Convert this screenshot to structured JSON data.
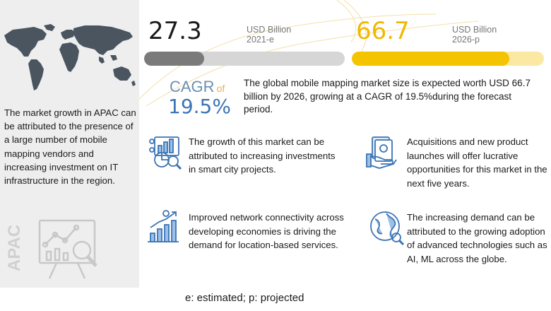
{
  "apac": {
    "description": "The market growth in APAC can be attributed to the presence of a large number of mobile mapping vendors and increasing investment on IT infrastructure  in the region.",
    "vertical_label": "APAC"
  },
  "stats": [
    {
      "value": "27.3",
      "unit_line1": "USD Billion",
      "unit_line2": "2021-e",
      "bar_fill_fraction": 0.3,
      "bar_color": "#7a7a7a",
      "bar_track_color": "#d6d6d6"
    },
    {
      "value": "66.7",
      "unit_line1": "USD Billion",
      "unit_line2": "2026-p",
      "bar_fill_fraction": 0.82,
      "bar_color": "#f5c400",
      "bar_track_color": "#fbe9a3",
      "value_color": "#f2b800"
    }
  ],
  "cagr": {
    "label": "CAGR",
    "of": "of",
    "value": "19.5%"
  },
  "summary": "The global mobile mapping market size is expected worth USD 66.7 billion by 2026, growing at a CAGR of 19.5%during the forecast period.",
  "cards": [
    {
      "icon": "analytics-chart-icon",
      "text": "The growth of this market can be attributed to increasing investments in smart city projects."
    },
    {
      "icon": "money-hand-icon",
      "text": "Acquisitions and new product launches will offer lucrative opportunities for this market in the next five years."
    },
    {
      "icon": "growth-bar-chart-icon",
      "text": "Improved network connectivity across developing economies is driving the demand for location-based services."
    },
    {
      "icon": "globe-icon",
      "text": "The increasing demand can be attributed to the growing adoption of advanced technologies such as AI, ML across the globe."
    }
  ],
  "footnote": "e: estimated; p: projected",
  "colors": {
    "accent_blue": "#3b74b5",
    "accent_yellow": "#f5c400",
    "panel_gray": "#eeeeee"
  }
}
